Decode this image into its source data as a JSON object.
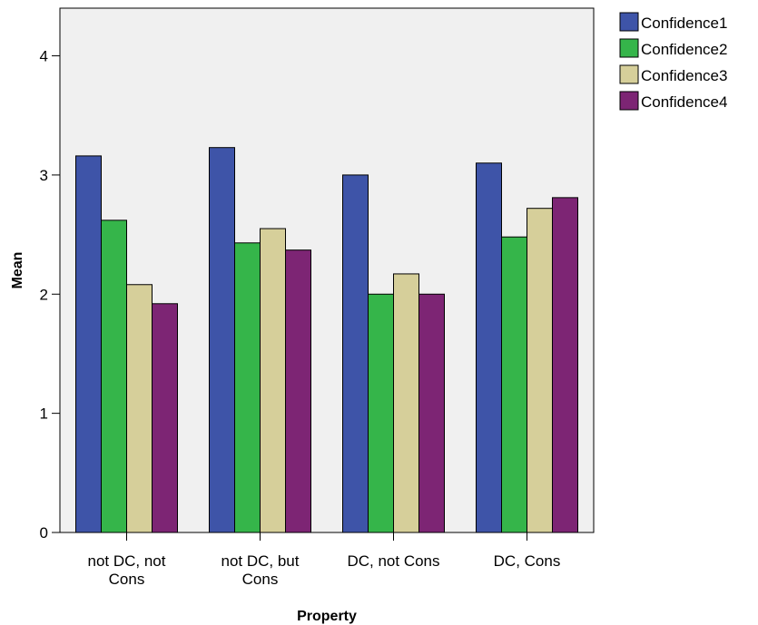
{
  "chart_data": {
    "type": "bar",
    "categories": [
      [
        "not DC, not",
        "Cons"
      ],
      [
        "not DC, but",
        "Cons"
      ],
      [
        "DC, not Cons"
      ],
      [
        "DC, Cons"
      ]
    ],
    "series": [
      {
        "name": "Confidence1",
        "color": "#3e54a8",
        "values": [
          3.16,
          3.23,
          3.0,
          3.1
        ]
      },
      {
        "name": "Confidence2",
        "color": "#35b54a",
        "values": [
          2.62,
          2.43,
          2.0,
          2.48
        ]
      },
      {
        "name": "Confidence3",
        "color": "#d6cf9a",
        "values": [
          2.08,
          2.55,
          2.17,
          2.72
        ]
      },
      {
        "name": "Confidence4",
        "color": "#7d2574",
        "values": [
          1.92,
          2.37,
          2.0,
          2.81
        ]
      }
    ],
    "xlabel": "Property",
    "ylabel": "Mean",
    "ylim": [
      0,
      4.4
    ],
    "yticks": [
      0,
      1,
      2,
      3,
      4
    ],
    "legend_position": "top-right-outside",
    "plot_background": "#f0f0f0",
    "grid": false
  }
}
